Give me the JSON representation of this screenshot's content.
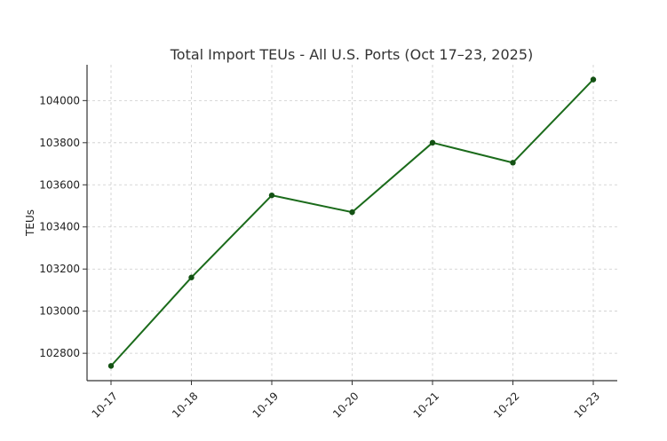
{
  "chart_data": {
    "type": "line",
    "title": "Total Import TEUs - All U.S. Ports (Oct 17–23, 2025)",
    "xlabel": "",
    "ylabel": "TEUs",
    "categories": [
      "10-17",
      "10-18",
      "10-19",
      "10-20",
      "10-21",
      "10-22",
      "10-23"
    ],
    "series": [
      {
        "values": [
          102740,
          103160,
          103550,
          103470,
          103800,
          103705,
          104100
        ]
      }
    ],
    "ylim": [
      102670,
      104170
    ],
    "yticks": [
      102800,
      103000,
      103200,
      103400,
      103600,
      103800,
      104000
    ],
    "grid": true,
    "colors": {
      "line": "#1b6b1b",
      "marker": "#145214"
    }
  }
}
